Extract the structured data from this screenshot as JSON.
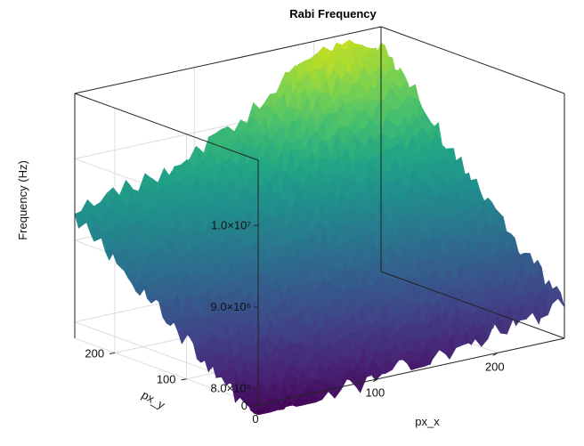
{
  "chart_data": {
    "type": "surface",
    "title": "Rabi Frequency",
    "xlabel": "px_x",
    "ylabel": "px_y",
    "zlabel": "Frequency (Hz)",
    "x_ticks": [
      {
        "value": 0,
        "label": "0"
      },
      {
        "value": 100,
        "label": "100"
      },
      {
        "value": 200,
        "label": "200"
      }
    ],
    "y_ticks": [
      {
        "value": 0,
        "label": "0"
      },
      {
        "value": 100,
        "label": "100"
      },
      {
        "value": 200,
        "label": "200"
      }
    ],
    "z_ticks": [
      {
        "value": 8000000,
        "label": "8.0×10⁶"
      },
      {
        "value": 9000000,
        "label": "9.0×10⁶"
      },
      {
        "value": 10000000,
        "label": "1.0×10⁷"
      }
    ],
    "xlim": [
      0,
      256
    ],
    "ylim": [
      0,
      256
    ],
    "zlim": [
      7800000,
      10800000
    ],
    "colormap": "viridis",
    "grid": true,
    "surface_corners": {
      "x0_y0": 7600000,
      "x256_y0": 8200000,
      "x0_y256": 9300000,
      "x256_y256": 10400000
    },
    "peak": {
      "x": 200,
      "y": 230,
      "z": 11000000
    },
    "noise_amplitude": 250000
  }
}
